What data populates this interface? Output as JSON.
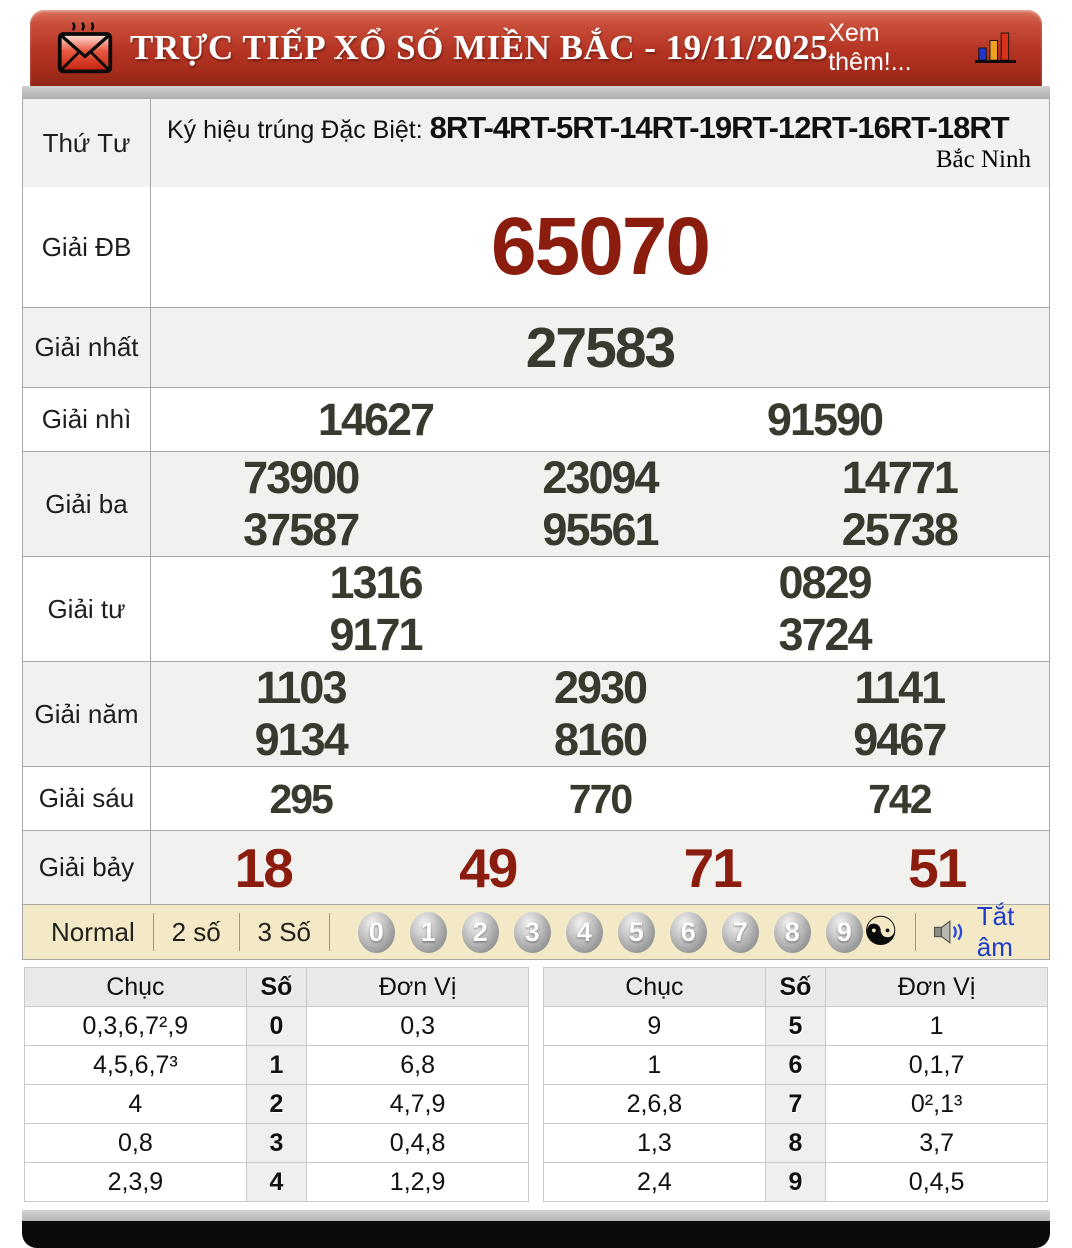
{
  "header": {
    "title": "TRỰC TIẾP XỔ SỐ MIỀN BẮC - 19/11/2025",
    "more_link": "Xem thêm!...",
    "envelope_icon": "mail-envelope-icon",
    "chart_icon": "bar-chart-icon"
  },
  "info_row": {
    "day_label": "Thứ Tư",
    "symbol_label": "Ký hiệu trúng Đặc Biệt: ",
    "symbols": "8RT-4RT-5RT-14RT-19RT-12RT-16RT-18RT",
    "province": "Bắc Ninh"
  },
  "prizes": [
    {
      "key": "db",
      "label": "Giải ĐB",
      "rows": [
        [
          "65070"
        ]
      ]
    },
    {
      "key": "nhat",
      "label": "Giải nhất",
      "rows": [
        [
          "27583"
        ]
      ]
    },
    {
      "key": "nhi",
      "label": "Giải nhì",
      "rows": [
        [
          "14627",
          "91590"
        ]
      ]
    },
    {
      "key": "ba",
      "label": "Giải ba",
      "rows": [
        [
          "73900",
          "23094",
          "14771"
        ],
        [
          "37587",
          "95561",
          "25738"
        ]
      ]
    },
    {
      "key": "tu",
      "label": "Giải tư",
      "rows": [
        [
          "1316",
          "0829"
        ],
        [
          "9171",
          "3724"
        ]
      ]
    },
    {
      "key": "nam",
      "label": "Giải năm",
      "rows": [
        [
          "1103",
          "2930",
          "1141"
        ],
        [
          "9134",
          "8160",
          "9467"
        ]
      ]
    },
    {
      "key": "sau",
      "label": "Giải sáu",
      "rows": [
        [
          "295",
          "770",
          "742"
        ]
      ]
    },
    {
      "key": "bay",
      "label": "Giải bảy",
      "rows": [
        [
          "18",
          "49",
          "71",
          "51"
        ]
      ]
    }
  ],
  "toolbar": {
    "modes": [
      "Normal",
      "2 số",
      "3 Số"
    ],
    "digits": [
      "0",
      "1",
      "2",
      "3",
      "4",
      "5",
      "6",
      "7",
      "8",
      "9"
    ],
    "yinyang_icon": "☯",
    "speaker_icon": "speaker-icon",
    "mute_label": "Tắt âm"
  },
  "stats": {
    "headers": [
      "Chục",
      "Số",
      "Đơn Vị"
    ],
    "left_rows": [
      [
        "0,3,6,7²,9",
        "0",
        "0,3"
      ],
      [
        "4,5,6,7³",
        "1",
        "6,8"
      ],
      [
        "4",
        "2",
        "4,7,9"
      ],
      [
        "0,8",
        "3",
        "0,4,8"
      ],
      [
        "2,3,9",
        "4",
        "1,2,9"
      ]
    ],
    "right_rows": [
      [
        "9",
        "5",
        "1"
      ],
      [
        "1",
        "6",
        "0,1,7"
      ],
      [
        "2,6,8",
        "7",
        "0²,1³"
      ],
      [
        "1,3",
        "8",
        "3,7"
      ],
      [
        "2,4",
        "9",
        "0,4,5"
      ]
    ]
  },
  "colors": {
    "header_red": "#b43322",
    "special_number_red": "#8b1d0e",
    "number_dark": "#3a392f",
    "toolbar_beige": "#f3e9c6",
    "mute_blue": "#1d3ecc",
    "row_shade": "#f1f1ef"
  }
}
